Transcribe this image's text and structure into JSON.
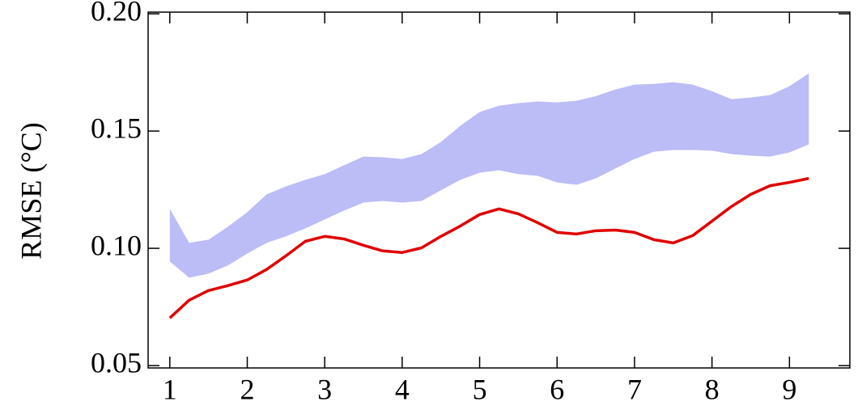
{
  "chart_data": {
    "type": "line",
    "ylabel": "RMSE (°C)",
    "x": [
      1,
      1.25,
      1.5,
      1.75,
      2,
      2.25,
      2.5,
      2.75,
      3,
      3.25,
      3.5,
      3.75,
      4,
      4.25,
      4.5,
      4.75,
      5,
      5.25,
      5.5,
      5.75,
      6,
      6.25,
      6.5,
      6.75,
      7,
      7.25,
      7.5,
      7.75,
      8,
      8.25,
      8.5,
      8.75,
      9,
      9.25
    ],
    "line": {
      "color": "#e00000",
      "values": [
        0.0703,
        0.0779,
        0.082,
        0.0841,
        0.0865,
        0.091,
        0.0968,
        0.103,
        0.1051,
        0.104,
        0.1013,
        0.0989,
        0.0982,
        0.1002,
        0.1051,
        0.1095,
        0.1144,
        0.1168,
        0.1147,
        0.1109,
        0.1068,
        0.1061,
        0.1075,
        0.1078,
        0.1068,
        0.1037,
        0.1023,
        0.1054,
        0.1116,
        0.1178,
        0.123,
        0.1267,
        0.1281,
        0.1298
      ]
    },
    "band": {
      "color": "#bcbcf6",
      "upper": [
        0.1168,
        0.1023,
        0.1037,
        0.1092,
        0.1154,
        0.123,
        0.1264,
        0.1292,
        0.1316,
        0.1354,
        0.1391,
        0.1388,
        0.1381,
        0.1402,
        0.1453,
        0.1522,
        0.1581,
        0.1608,
        0.1619,
        0.1626,
        0.1622,
        0.1629,
        0.1649,
        0.1677,
        0.1698,
        0.1701,
        0.1708,
        0.1698,
        0.167,
        0.1636,
        0.1643,
        0.1653,
        0.1691,
        0.1746
      ],
      "lower": [
        0.0944,
        0.0875,
        0.0892,
        0.0927,
        0.0978,
        0.1023,
        0.1051,
        0.1085,
        0.1123,
        0.1161,
        0.1195,
        0.1202,
        0.1195,
        0.1202,
        0.1247,
        0.1292,
        0.1322,
        0.1333,
        0.1316,
        0.1309,
        0.1281,
        0.1271,
        0.1298,
        0.134,
        0.1381,
        0.1412,
        0.1419,
        0.1419,
        0.1416,
        0.1402,
        0.1395,
        0.1391,
        0.1409,
        0.1443
      ]
    },
    "xlim": [
      0.72,
      9.78
    ],
    "ylim": [
      0.049,
      0.2007
    ],
    "xticks": [
      1,
      2,
      3,
      4,
      5,
      6,
      7,
      8,
      9
    ],
    "yticks": [
      {
        "value": 0.05,
        "label": "0.05"
      },
      {
        "value": 0.1,
        "label": "0.10"
      },
      {
        "value": 0.15,
        "label": "0.15"
      },
      {
        "value": 0.2,
        "label": "0.20"
      }
    ]
  }
}
